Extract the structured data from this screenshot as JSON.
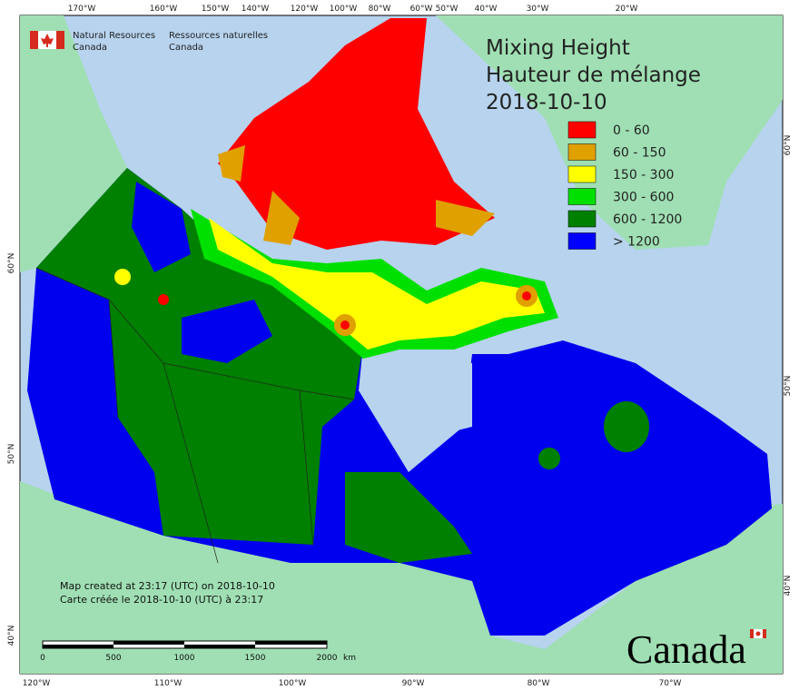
{
  "header": {
    "agency_en": [
      "Natural Resources",
      "Canada"
    ],
    "agency_fr": [
      "Ressources naturelles",
      "Canada"
    ]
  },
  "title": {
    "line1": "Mixing Height",
    "line2": "Hauteur de mélange",
    "date": "2018-10-10"
  },
  "legend": [
    {
      "label": "0 - 60",
      "color": "#ff0000"
    },
    {
      "label": "60 - 150",
      "color": "#e0a000"
    },
    {
      "label": "150 - 300",
      "color": "#ffff00"
    },
    {
      "label": "300 - 600",
      "color": "#00e000"
    },
    {
      "label": "600 - 1200",
      "color": "#008000"
    },
    {
      "label": "> 1200",
      "color": "#0000ff"
    }
  ],
  "graticule": {
    "top": [
      "170°W",
      "160°W",
      "150°W",
      "140°W",
      "120°W",
      "100°W",
      "80°W",
      "60°W",
      "50°W",
      "40°W",
      "30°W",
      "20°W"
    ],
    "bottom": [
      "120°W",
      "110°W",
      "100°W",
      "90°W",
      "80°W",
      "70°W"
    ],
    "left": [
      "60°N",
      "50°N",
      "40°N"
    ],
    "right": [
      "60°N",
      "50°N",
      "40°N"
    ]
  },
  "footer": {
    "created_en": "Map created at 23:17 (UTC) on 2018-10-10",
    "created_fr": "Carte créée le 2018-10-10 (UTC) à 23:17"
  },
  "scale_bar": {
    "ticks": [
      "0",
      "500",
      "1000",
      "1500",
      "2000"
    ],
    "unit": "km"
  },
  "wordmark": "Canada"
}
